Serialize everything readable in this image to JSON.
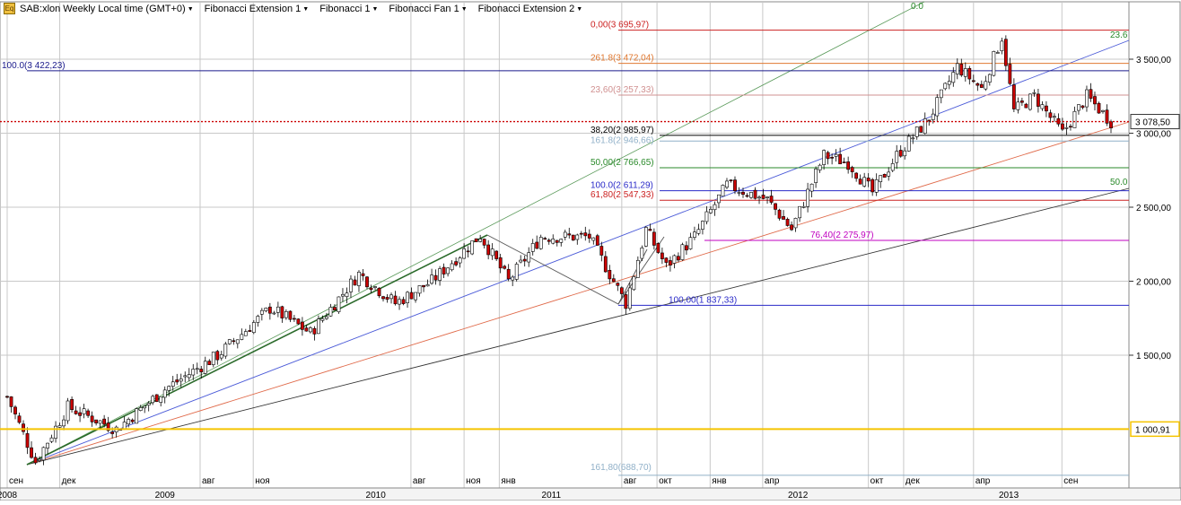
{
  "toolbar": {
    "app_icon_label": "Eq",
    "items": [
      {
        "label": "SAB:xlon Weekly Local time (GMT+0)"
      },
      {
        "label": "Fibonacci Extension 1"
      },
      {
        "label": "Fibonacci 1"
      },
      {
        "label": "Fibonacci Fan 1"
      },
      {
        "label": "Fibonacci Extension 2"
      }
    ]
  },
  "colors": {
    "up_candle": "#ffffff",
    "down_candle": "#cc0000",
    "wick": "#000000",
    "current_price_line": "#cc0000",
    "support_line": "#f5c400",
    "grid": "#c8c8c8"
  },
  "chart_data": {
    "type": "candlestick",
    "title": "SAB:xlon Weekly Local time (GMT+0)",
    "ylim": [
      700,
      3800
    ],
    "grid": true,
    "y_ticks": [
      "3 500,00",
      "3 000,00",
      "2 500,00",
      "2 000,00",
      "1 500,00"
    ],
    "y_tick_values": [
      3500,
      3000,
      2500,
      2000,
      1500
    ],
    "x_ticks": [
      {
        "label": "сен",
        "date": "2008-09"
      },
      {
        "label": "дек",
        "date": "2008-12"
      },
      {
        "label": "авг",
        "date": "2009-08"
      },
      {
        "label": "ноя",
        "date": "2009-11"
      },
      {
        "label": "авг",
        "date": "2010-08"
      },
      {
        "label": "ноя",
        "date": "2010-11"
      },
      {
        "label": "янв",
        "date": "2011-01"
      },
      {
        "label": "авг",
        "date": "2011-08"
      },
      {
        "label": "окт",
        "date": "2011-10"
      },
      {
        "label": "янв",
        "date": "2012-01"
      },
      {
        "label": "апр",
        "date": "2012-04"
      },
      {
        "label": "окт",
        "date": "2012-10"
      },
      {
        "label": "дек",
        "date": "2012-12"
      },
      {
        "label": "апр",
        "date": "2013-04"
      },
      {
        "label": "сен",
        "date": "2013-09"
      }
    ],
    "year_labels": [
      {
        "label": "2008",
        "date": "2008-09"
      },
      {
        "label": "2009",
        "date": "2009-06"
      },
      {
        "label": "2010",
        "date": "2010-06"
      },
      {
        "label": "2011",
        "date": "2011-04"
      },
      {
        "label": "2012",
        "date": "2012-06"
      },
      {
        "label": "2013",
        "date": "2013-06"
      }
    ],
    "price_labels": {
      "current": {
        "label": "3 078,50",
        "value": 3078.5
      },
      "support": {
        "label": "1 000,91",
        "value": 1000.91
      }
    },
    "close_path": [
      {
        "date": "2008-09-01",
        "value": 1220
      },
      {
        "date": "2008-10-20",
        "value": 780
      },
      {
        "date": "2008-12-15",
        "value": 1150
      },
      {
        "date": "2009-03-09",
        "value": 1000
      },
      {
        "date": "2009-06-01",
        "value": 1270
      },
      {
        "date": "2009-09-01",
        "value": 1500
      },
      {
        "date": "2009-12-01",
        "value": 1820
      },
      {
        "date": "2010-02-08",
        "value": 1650
      },
      {
        "date": "2010-05-03",
        "value": 2050
      },
      {
        "date": "2010-07-05",
        "value": 1850
      },
      {
        "date": "2010-09-06",
        "value": 2000
      },
      {
        "date": "2010-11-29",
        "value": 2310
      },
      {
        "date": "2011-01-17",
        "value": 2000
      },
      {
        "date": "2011-03-14",
        "value": 2300
      },
      {
        "date": "2011-06-06",
        "value": 2300
      },
      {
        "date": "2011-08-08",
        "value": 1850
      },
      {
        "date": "2011-09-12",
        "value": 2350
      },
      {
        "date": "2011-10-17",
        "value": 2100
      },
      {
        "date": "2011-12-05",
        "value": 2300
      },
      {
        "date": "2012-01-30",
        "value": 2650
      },
      {
        "date": "2012-04-09",
        "value": 2550
      },
      {
        "date": "2012-05-21",
        "value": 2350
      },
      {
        "date": "2012-07-16",
        "value": 2850
      },
      {
        "date": "2012-08-27",
        "value": 2800
      },
      {
        "date": "2012-10-08",
        "value": 2600
      },
      {
        "date": "2012-11-19",
        "value": 2850
      },
      {
        "date": "2013-01-14",
        "value": 3100
      },
      {
        "date": "2013-03-04",
        "value": 3450
      },
      {
        "date": "2013-04-15",
        "value": 3300
      },
      {
        "date": "2013-05-20",
        "value": 3650
      },
      {
        "date": "2013-06-10",
        "value": 3150
      },
      {
        "date": "2013-07-15",
        "value": 3250
      },
      {
        "date": "2013-09-02",
        "value": 3000
      },
      {
        "date": "2013-10-14",
        "value": 3250
      },
      {
        "date": "2013-11-25",
        "value": 3078
      }
    ],
    "fib_levels": [
      {
        "label": "0,00(3 695,97)",
        "value": 3695.97,
        "color": "#cc2222"
      },
      {
        "label": "261.8(3 472,04)",
        "value": 3472.04,
        "color": "#e07830"
      },
      {
        "label": "100.0(3 422,23)",
        "value": 3422.23,
        "color": "#1a1a8c"
      },
      {
        "label": "23,60(3 257,33)",
        "value": 3257.33,
        "color": "#d09090"
      },
      {
        "label": "38,20(2 985,97)",
        "value": 2985.97,
        "color": "#000000"
      },
      {
        "label": "161.8(2 946,66)",
        "value": 2946.66,
        "color": "#90b0c8"
      },
      {
        "label": "50,00(2 766,65)",
        "value": 2766.65,
        "color": "#2a8a2a"
      },
      {
        "label": "100.0(2 611,29)",
        "value": 2611.29,
        "color": "#2a2ac8"
      },
      {
        "label": "61,80(2 547,33)",
        "value": 2547.33,
        "color": "#cc2222"
      },
      {
        "label": "76,40(2 275,97)",
        "value": 2275.97,
        "color": "#c000c0"
      },
      {
        "label": "100,00(1 837,33)",
        "value": 1837.33,
        "color": "#2a2ac8"
      },
      {
        "label": "161,80(688,70)",
        "value": 688.7,
        "color": "#90b0c8"
      }
    ],
    "fan_labels": [
      {
        "label": "0.0",
        "color": "#2a8a2a"
      },
      {
        "label": "23.6",
        "color": "#2a8a2a"
      },
      {
        "label": "50.0",
        "color": "#2a8a2a"
      }
    ]
  }
}
